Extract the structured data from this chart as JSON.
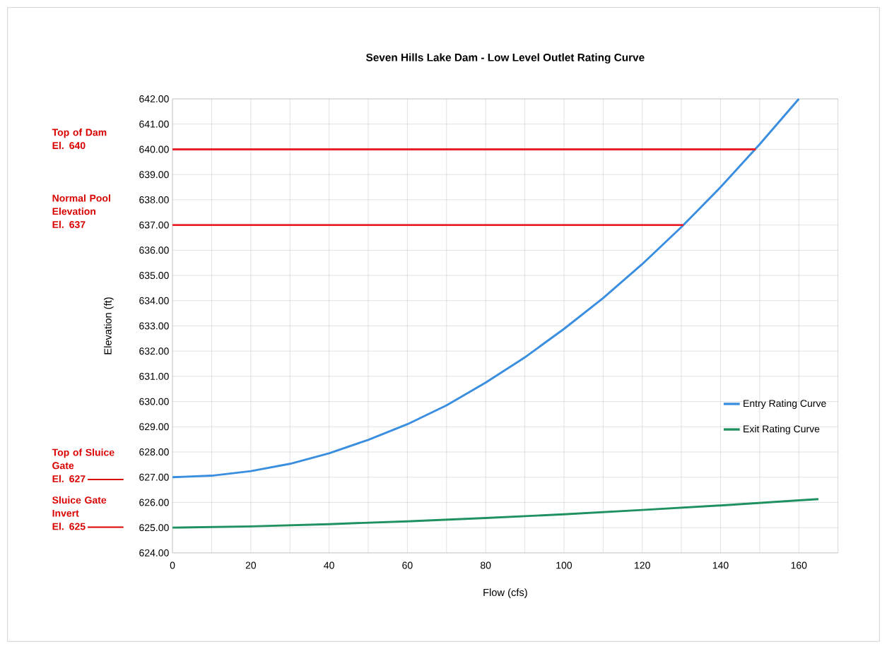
{
  "chart_data": {
    "type": "line",
    "title": "Seven Hills Lake Dam - Low Level Outlet Rating Curve",
    "xlabel": "Flow (cfs)",
    "ylabel": "Elevation (ft)",
    "xlim": [
      0,
      170
    ],
    "ylim": [
      624,
      642
    ],
    "xticks": [
      0,
      {
        "value": 10,
        "label": null
      },
      20,
      {
        "value": 30,
        "label": null
      },
      40,
      {
        "value": 50,
        "label": null
      },
      60,
      {
        "value": 70,
        "label": null
      },
      80,
      {
        "value": 90,
        "label": null
      },
      100,
      {
        "value": 110,
        "label": null
      },
      120,
      {
        "value": 130,
        "label": null
      },
      140,
      {
        "value": 150,
        "label": null
      },
      160
    ],
    "yticks": [
      {
        "value": 624,
        "label": "624.00"
      },
      {
        "value": 625,
        "label": "625.00"
      },
      {
        "value": 626,
        "label": "626.00"
      },
      {
        "value": 627,
        "label": "627.00"
      },
      {
        "value": 628,
        "label": "628.00"
      },
      {
        "value": 629,
        "label": "629.00"
      },
      {
        "value": 630,
        "label": "630.00"
      },
      {
        "value": 631,
        "label": "631.00"
      },
      {
        "value": 632,
        "label": "632.00"
      },
      {
        "value": 633,
        "label": "633.00"
      },
      {
        "value": 634,
        "label": "634.00"
      },
      {
        "value": 635,
        "label": "635.00"
      },
      {
        "value": 636,
        "label": "636.00"
      },
      {
        "value": 637,
        "label": "637.00"
      },
      {
        "value": 638,
        "label": "638.00"
      },
      {
        "value": 639,
        "label": "639.00"
      },
      {
        "value": 640,
        "label": "640.00"
      },
      {
        "value": 641,
        "label": "641.00"
      },
      {
        "value": 642,
        "label": "642.00"
      }
    ],
    "grid": true,
    "legend": "right",
    "marker": "none",
    "line_style": "solid",
    "series": [
      {
        "name": "Entry Rating Curve",
        "color": "#3a8ee0",
        "x": [
          0,
          10,
          20,
          30,
          40,
          50,
          60,
          70,
          80,
          90,
          100,
          110,
          120,
          130,
          140,
          150,
          160
        ],
        "values": [
          627.0,
          627.06,
          627.24,
          627.53,
          627.95,
          628.48,
          629.1,
          629.85,
          630.75,
          631.75,
          632.88,
          634.1,
          635.45,
          636.92,
          638.5,
          640.2,
          642.0
        ]
      },
      {
        "name": "Exit Rating Curve",
        "color": "#1f9160",
        "x": [
          0,
          20,
          40,
          60,
          80,
          100,
          120,
          140,
          160,
          165
        ],
        "values": [
          625.0,
          625.05,
          625.14,
          625.25,
          625.38,
          625.53,
          625.7,
          625.88,
          626.08,
          626.13
        ]
      },
      {
        "color": "#e8202a",
        "x": [
          0,
          149
        ],
        "values": [
          640,
          640
        ]
      },
      {
        "color": "#e8202a",
        "x": [
          0,
          130.5
        ],
        "values": [
          637,
          637
        ]
      }
    ],
    "annotations": [
      "Top of Dam\nEl. 640",
      "Normal Pool\nElevation\nEl. 637",
      "Top of Sluice\nGate\nEl. 627",
      "Sluice Gate\nInvert\nEl. 625"
    ]
  }
}
